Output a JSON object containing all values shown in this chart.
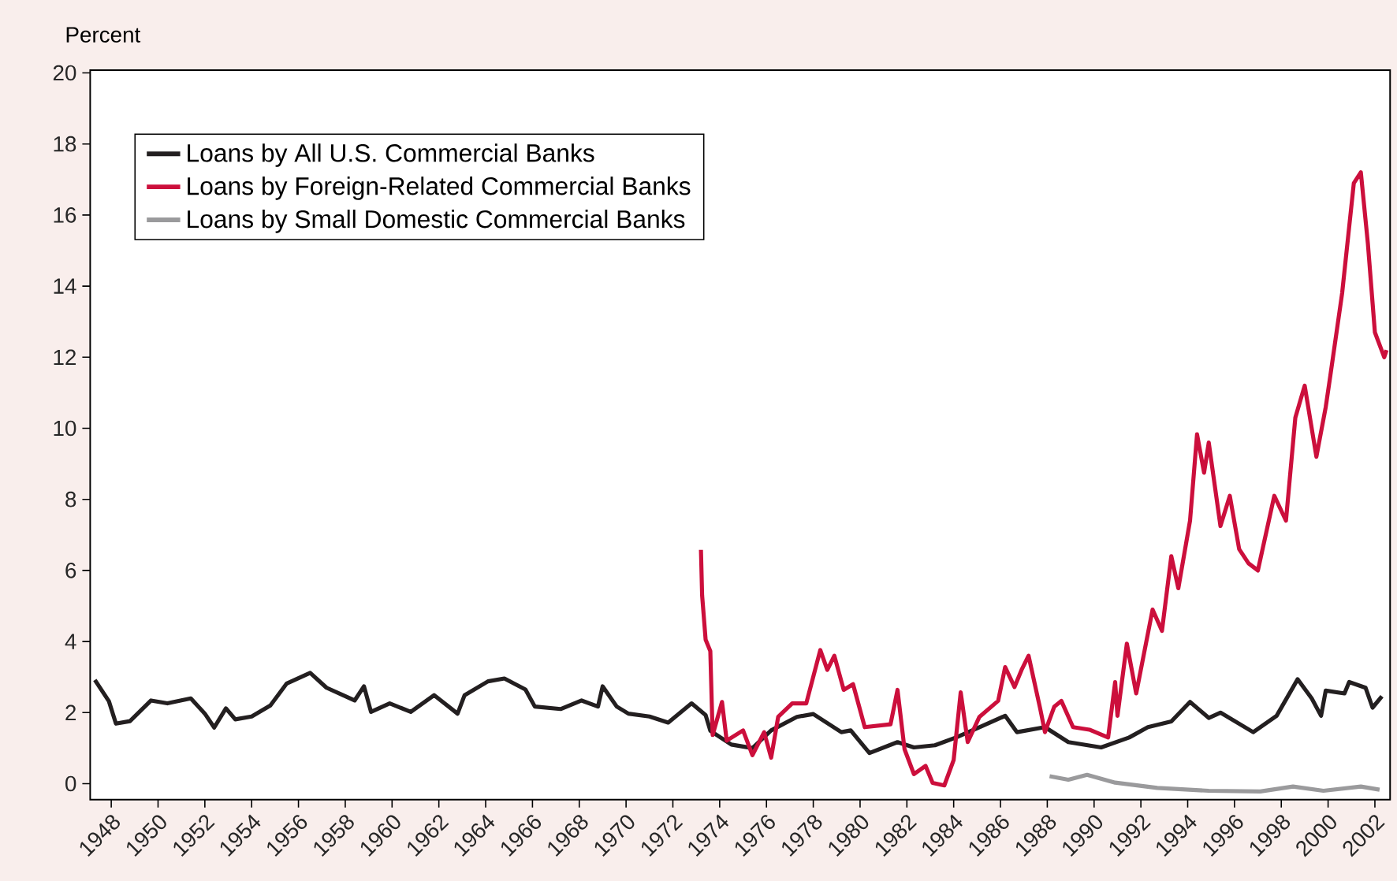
{
  "chart_data": {
    "type": "line",
    "ylabel": "Percent",
    "xlim": [
      1947.1,
      2002.65
    ],
    "ylim": [
      -0.45,
      20.08
    ],
    "xticks": [
      1948,
      1950,
      1952,
      1954,
      1956,
      1958,
      1960,
      1962,
      1964,
      1966,
      1968,
      1970,
      1972,
      1974,
      1976,
      1978,
      1980,
      1982,
      1984,
      1986,
      1988,
      1990,
      1992,
      1994,
      1996,
      1998,
      2000,
      2002
    ],
    "yticks": [
      0,
      2,
      4,
      6,
      8,
      10,
      12,
      14,
      16,
      18,
      20
    ],
    "legend": "top left",
    "grid": false,
    "marker": "none",
    "line_style": "solid",
    "series": [
      {
        "name": "Loans by All U.S. Commercial Banks",
        "color": "#231f20",
        "x": [
          1947.3,
          1947.9,
          1948.2,
          1948.8,
          1949.7,
          1950.4,
          1951.4,
          1952.0,
          1952.4,
          1952.9,
          1953.3,
          1954.0,
          1954.8,
          1955.5,
          1956.5,
          1957.2,
          1957.9,
          1958.4,
          1958.8,
          1959.1,
          1959.9,
          1960.8,
          1961.8,
          1962.8,
          1963.1,
          1964.1,
          1964.8,
          1965.7,
          1966.1,
          1967.2,
          1968.1,
          1968.8,
          1969.0,
          1969.6,
          1970.1,
          1971.0,
          1971.8,
          1972.8,
          1973.4,
          1973.6,
          1974.5,
          1975.4,
          1976.2,
          1977.3,
          1978.0,
          1979.2,
          1979.6,
          1980.4,
          1981.6,
          1982.3,
          1983.2,
          1984.1,
          1985.1,
          1986.2,
          1986.7,
          1987.9,
          1988.9,
          1990.3,
          1991.5,
          1992.3,
          1993.3,
          1994.1,
          1994.9,
          1995.4,
          1996.8,
          1997.8,
          1998.7,
          1999.3,
          1999.7,
          1999.9,
          2000.7,
          2000.9,
          2001.6,
          2001.9,
          2002.3
        ],
        "values": [
          2.92,
          2.32,
          1.69,
          1.76,
          2.34,
          2.26,
          2.4,
          1.97,
          1.58,
          2.12,
          1.81,
          1.89,
          2.2,
          2.82,
          3.12,
          2.7,
          2.49,
          2.34,
          2.74,
          2.02,
          2.26,
          2.02,
          2.49,
          1.97,
          2.49,
          2.88,
          2.96,
          2.65,
          2.17,
          2.1,
          2.34,
          2.17,
          2.74,
          2.17,
          1.97,
          1.89,
          1.72,
          2.26,
          1.93,
          1.49,
          1.1,
          1.0,
          1.5,
          1.88,
          1.96,
          1.45,
          1.5,
          0.86,
          1.17,
          1.02,
          1.08,
          1.3,
          1.59,
          1.91,
          1.45,
          1.59,
          1.17,
          1.02,
          1.3,
          1.59,
          1.75,
          2.3,
          1.85,
          2.0,
          1.45,
          1.91,
          2.94,
          2.4,
          1.91,
          2.62,
          2.54,
          2.86,
          2.7,
          2.14,
          2.46
        ]
      },
      {
        "name": "Loans by Foreign-Related Commercial Banks",
        "color": "#cc0f3c",
        "x": [
          1973.2,
          1973.25,
          1973.4,
          1973.6,
          1973.7,
          1974.1,
          1974.3,
          1975.0,
          1975.4,
          1975.9,
          1976.2,
          1976.5,
          1977.1,
          1977.7,
          1978.3,
          1978.6,
          1978.9,
          1979.3,
          1979.7,
          1980.2,
          1981.3,
          1981.6,
          1981.9,
          1982.3,
          1982.8,
          1983.1,
          1983.6,
          1984.0,
          1984.3,
          1984.6,
          1985.1,
          1985.9,
          1986.2,
          1986.6,
          1986.9,
          1987.2,
          1987.7,
          1987.9,
          1988.3,
          1988.6,
          1989.1,
          1989.8,
          1990.6,
          1990.9,
          1991.0,
          1991.4,
          1991.8,
          1992.5,
          1992.9,
          1993.3,
          1993.6,
          1994.1,
          1994.4,
          1994.7,
          1994.9,
          1995.4,
          1995.8,
          1996.2,
          1996.6,
          1997.0,
          1997.7,
          1998.2,
          1998.6,
          1999.0,
          1999.5,
          1999.9,
          2000.1,
          2000.6,
          2001.1,
          2001.4,
          2001.7,
          2002.0,
          2002.4,
          2002.5
        ],
        "values": [
          6.58,
          5.3,
          4.05,
          3.73,
          1.37,
          2.3,
          1.21,
          1.5,
          0.8,
          1.45,
          0.73,
          1.88,
          2.26,
          2.26,
          3.76,
          3.2,
          3.6,
          2.64,
          2.8,
          1.59,
          1.67,
          2.64,
          0.97,
          0.27,
          0.5,
          0.02,
          -0.05,
          0.67,
          2.57,
          1.17,
          1.88,
          2.33,
          3.28,
          2.72,
          3.2,
          3.6,
          2.1,
          1.45,
          2.17,
          2.33,
          1.59,
          1.52,
          1.3,
          2.86,
          1.91,
          3.94,
          2.54,
          4.9,
          4.3,
          6.4,
          5.5,
          7.4,
          9.83,
          8.75,
          9.6,
          7.25,
          8.1,
          6.6,
          6.2,
          6.0,
          8.1,
          7.4,
          10.3,
          11.2,
          9.2,
          10.6,
          11.5,
          13.8,
          16.9,
          17.2,
          15.2,
          12.7,
          12.0,
          12.2
        ]
      },
      {
        "name": "Loans by Small Domestic Commercial Banks",
        "color": "#9a9a9c",
        "x": [
          1988.1,
          1988.9,
          1989.7,
          1990.9,
          1992.7,
          1994.9,
          1997.1,
          1998.5,
          1999.8,
          2001.4,
          2002.2
        ],
        "values": [
          0.21,
          0.11,
          0.25,
          0.03,
          -0.12,
          -0.2,
          -0.22,
          -0.08,
          -0.2,
          -0.08,
          -0.17
        ]
      }
    ]
  }
}
